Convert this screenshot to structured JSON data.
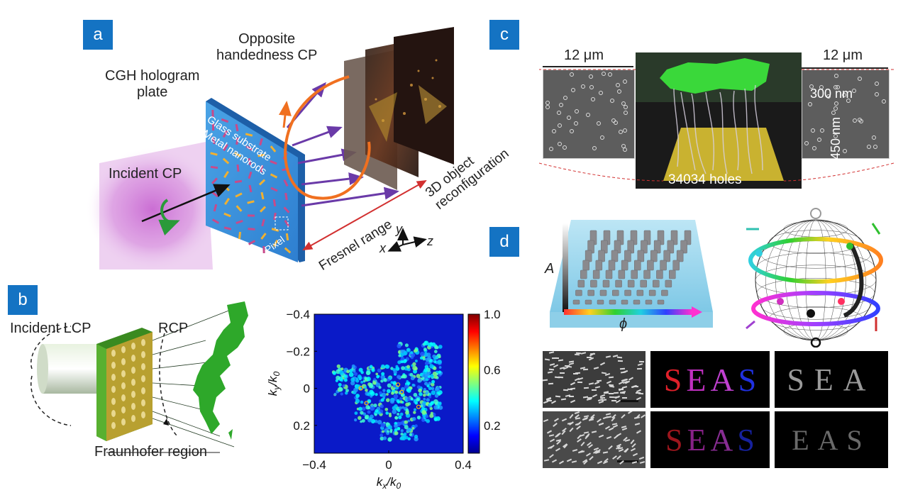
{
  "panels": {
    "a": "a",
    "b": "b",
    "c": "c",
    "d": "d"
  },
  "panel_a": {
    "cgh_line1": "CGH hologram",
    "cgh_line2": "plate",
    "opposite_line1": "Opposite",
    "opposite_line2": "handedness CP",
    "incident": "Incident CP",
    "glass": "Glass substrate",
    "metal": "Metal nanorods",
    "pixel": "Pixel",
    "fresnel": "Fresnel range",
    "obj_line1": "3D object",
    "obj_line2": "reconfiguration",
    "axis_x": "x",
    "axis_y": "y",
    "axis_z": "z"
  },
  "panel_b": {
    "incident": "Incident LCP",
    "rcp": "RCP",
    "fraunhofer": "Fraunhofer region"
  },
  "panel_c": {
    "scale_left": "12 μm",
    "scale_right": "12 μm",
    "dim_300": "300 nm",
    "dim_450": "450 nm",
    "holes": "34034 holes"
  },
  "panel_d": {
    "axis_A": "A",
    "axis_phi": "ϕ",
    "seas_top": [
      "S",
      "E",
      "A",
      "S"
    ],
    "seas_gray_top": "SEA",
    "seas_bottom": [
      "S",
      "E",
      "A",
      "S"
    ],
    "seas_gray_bottom": "EAS",
    "letter_colors": [
      "#e0202a",
      "#c030c0",
      "#c040d0",
      "#2030e0"
    ]
  },
  "chart_data": {
    "type": "heatmap",
    "xlabel": "kx/k0",
    "ylabel": "ky/k0",
    "x_ticks": [
      "−0.4",
      "0",
      "0.4"
    ],
    "y_ticks": [
      "−0.4",
      "−0.2",
      "0",
      "0.2"
    ],
    "xlim": [
      -0.4,
      0.4
    ],
    "ylim": [
      -0.4,
      0.35
    ],
    "colorbar": {
      "min": 0,
      "max": 1.0,
      "ticks": [
        "1.0",
        "0.6",
        "0.2"
      ],
      "colormap": "jet"
    }
  }
}
